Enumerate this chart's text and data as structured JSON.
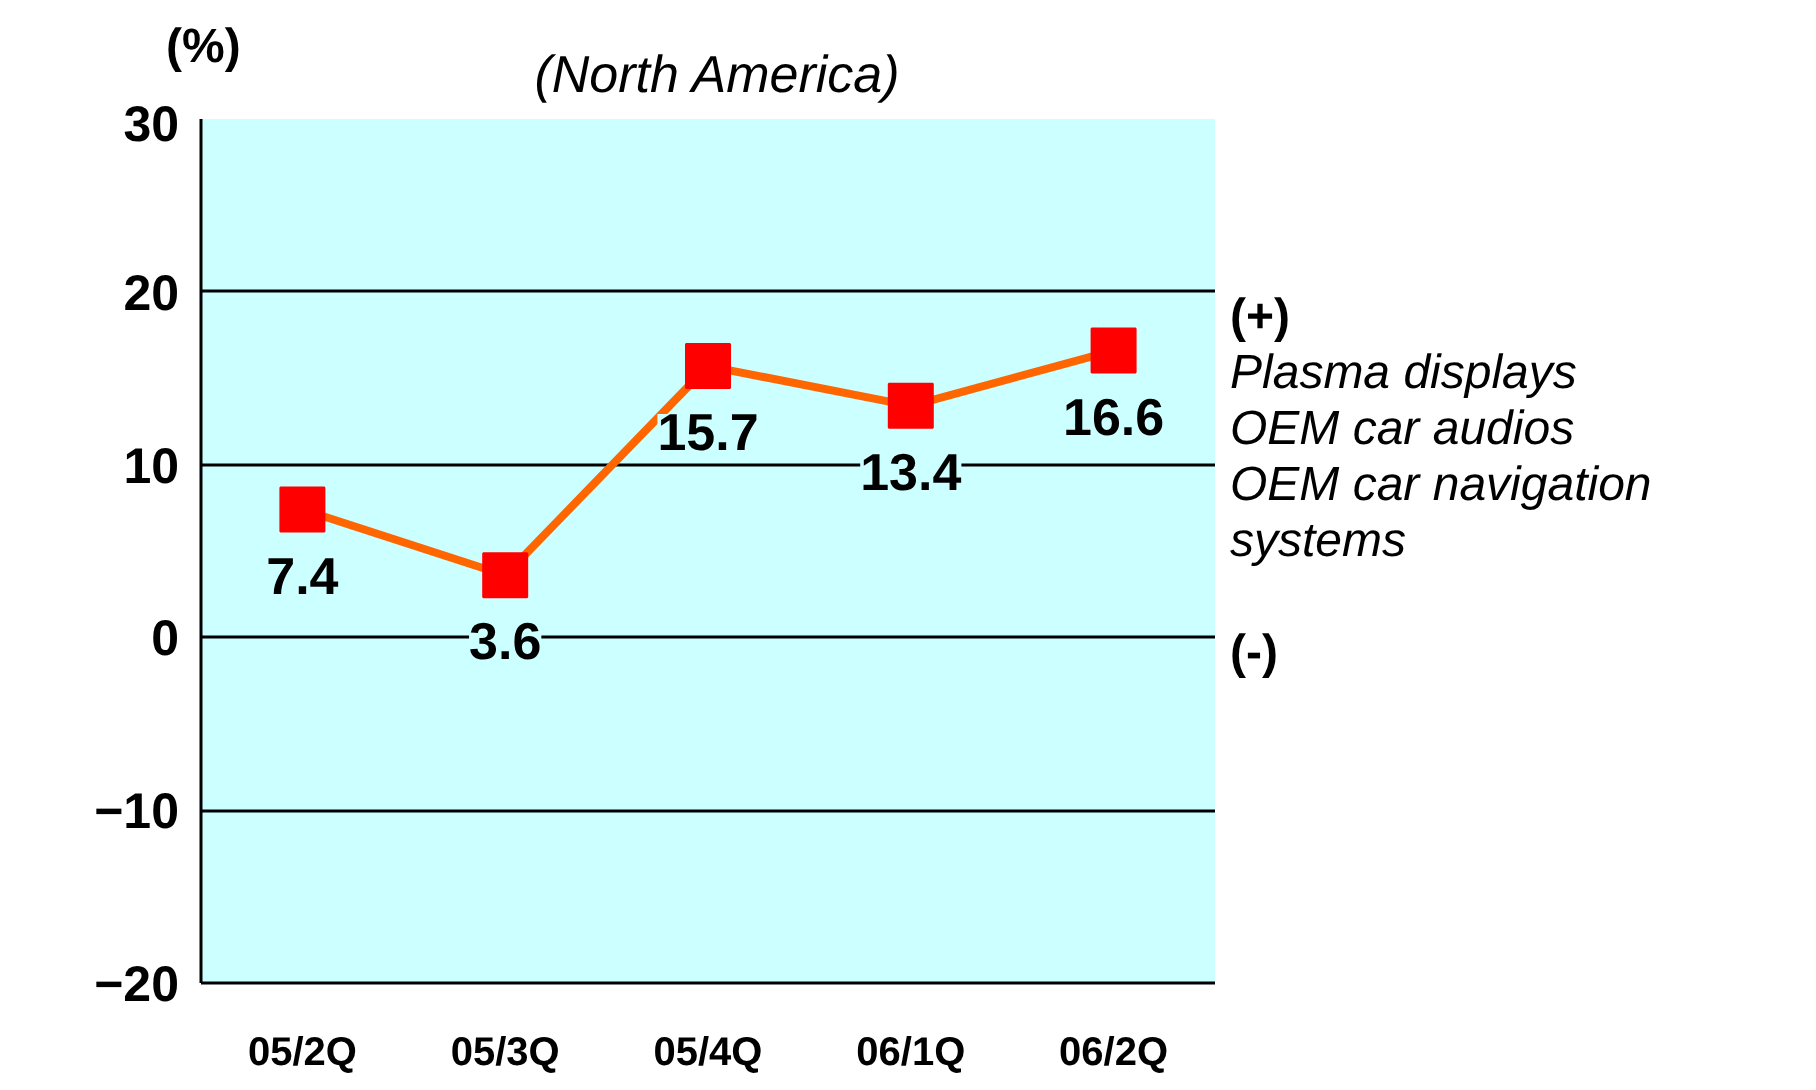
{
  "chart_data": {
    "type": "line",
    "title": "(North America)",
    "ylabel": "(%)",
    "categories": [
      "05/2Q",
      "05/3Q",
      "05/4Q",
      "06/1Q",
      "06/2Q"
    ],
    "series": [
      {
        "color": "#ff6600",
        "values": [
          7.4,
          3.6,
          15.7,
          13.4,
          16.6
        ]
      }
    ],
    "marker": "square",
    "data_labels": true,
    "grid": "y",
    "ylim": [
      -20,
      30
    ],
    "yticks": [
      -20,
      -10,
      0,
      10,
      20,
      30
    ],
    "annotations": [
      "(+)",
      "Plasma displays",
      "OEM car audios",
      "OEM car navigation systems",
      "(-)"
    ]
  }
}
